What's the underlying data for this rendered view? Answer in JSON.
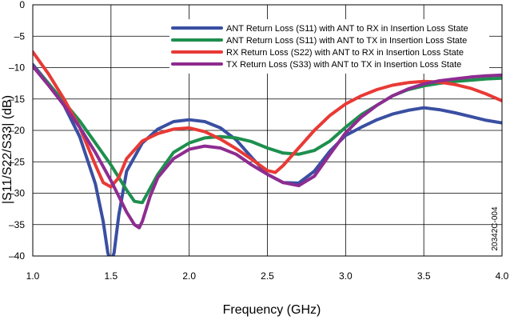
{
  "chart_data": {
    "type": "line",
    "xlabel": "Frequency (GHz)",
    "ylabel": "|S11/S22/S33| (dB)",
    "xlim": [
      1.0,
      4.0
    ],
    "ylim": [
      -40,
      0
    ],
    "x_ticks": [
      "1.0",
      "1.5",
      "2.0",
      "2.5",
      "3.0",
      "3.5",
      "4.0"
    ],
    "y_ticks": [
      "0",
      "–5",
      "–10",
      "–15",
      "–20",
      "–25",
      "–30",
      "–35",
      "–40"
    ],
    "grid": true,
    "legend_position": "top-right",
    "figure_id": "20342C-004",
    "series": [
      {
        "name": "ANT Return Loss (S11) with ANT to RX in Insertion Loss State",
        "color": "#3a4fa2",
        "x": [
          1.0,
          1.1,
          1.2,
          1.3,
          1.4,
          1.45,
          1.48,
          1.5,
          1.52,
          1.55,
          1.6,
          1.7,
          1.8,
          1.9,
          2.0,
          2.1,
          2.2,
          2.3,
          2.4,
          2.5,
          2.6,
          2.7,
          2.8,
          2.9,
          3.0,
          3.1,
          3.2,
          3.3,
          3.4,
          3.5,
          3.6,
          3.7,
          3.8,
          3.9,
          4.0
        ],
        "y": [
          -9.5,
          -12.5,
          -16.0,
          -21.0,
          -28.5,
          -34.5,
          -39.5,
          -41.0,
          -39.5,
          -33.5,
          -26.5,
          -22.0,
          -19.8,
          -18.6,
          -18.3,
          -18.6,
          -19.6,
          -21.5,
          -24.3,
          -27.0,
          -28.3,
          -28.4,
          -26.5,
          -23.3,
          -20.8,
          -19.5,
          -18.3,
          -17.4,
          -16.8,
          -16.4,
          -16.7,
          -17.2,
          -17.8,
          -18.4,
          -18.8
        ]
      },
      {
        "name": "ANT Return Loss (S11) with ANT to TX in Insertion Loss State",
        "color": "#1e8f4e",
        "x": [
          1.0,
          1.1,
          1.2,
          1.3,
          1.4,
          1.5,
          1.6,
          1.65,
          1.7,
          1.8,
          1.9,
          2.0,
          2.1,
          2.2,
          2.3,
          2.4,
          2.5,
          2.6,
          2.7,
          2.8,
          2.9,
          3.0,
          3.1,
          3.2,
          3.3,
          3.4,
          3.5,
          3.6,
          3.7,
          3.8,
          3.9,
          4.0
        ],
        "y": [
          -9.8,
          -12.5,
          -15.5,
          -18.5,
          -22.0,
          -25.5,
          -29.5,
          -31.3,
          -31.5,
          -27.0,
          -23.5,
          -22.0,
          -21.2,
          -21.0,
          -21.2,
          -21.8,
          -22.8,
          -23.6,
          -23.8,
          -23.2,
          -21.7,
          -19.5,
          -17.5,
          -16.0,
          -14.5,
          -13.5,
          -12.9,
          -12.5,
          -12.2,
          -12.0,
          -11.8,
          -11.7
        ]
      },
      {
        "name": "RX Return Loss (S22) with ANT to RX in Insertion Loss State",
        "color": "#e83a36",
        "x": [
          1.0,
          1.1,
          1.2,
          1.3,
          1.4,
          1.45,
          1.5,
          1.55,
          1.6,
          1.7,
          1.8,
          1.9,
          2.0,
          2.1,
          2.2,
          2.3,
          2.4,
          2.5,
          2.55,
          2.6,
          2.7,
          2.8,
          2.9,
          3.0,
          3.1,
          3.2,
          3.3,
          3.4,
          3.5,
          3.6,
          3.7,
          3.8,
          3.9,
          4.0
        ],
        "y": [
          -7.5,
          -11.0,
          -15.0,
          -19.5,
          -25.5,
          -28.3,
          -29.0,
          -27.5,
          -24.5,
          -21.7,
          -20.5,
          -19.8,
          -19.6,
          -20.2,
          -21.4,
          -22.9,
          -24.6,
          -26.4,
          -26.7,
          -25.6,
          -22.8,
          -20.0,
          -17.6,
          -15.8,
          -14.5,
          -13.5,
          -12.8,
          -12.4,
          -12.2,
          -12.3,
          -12.7,
          -13.3,
          -14.2,
          -15.3
        ]
      },
      {
        "name": "TX Return Loss (S33) with ANT to TX in Insertion Loss State",
        "color": "#8e2c91",
        "x": [
          1.0,
          1.1,
          1.2,
          1.3,
          1.4,
          1.5,
          1.55,
          1.6,
          1.65,
          1.68,
          1.7,
          1.75,
          1.8,
          1.9,
          2.0,
          2.1,
          2.2,
          2.3,
          2.4,
          2.5,
          2.6,
          2.7,
          2.8,
          2.9,
          3.0,
          3.1,
          3.2,
          3.3,
          3.4,
          3.5,
          3.6,
          3.7,
          3.8,
          3.9,
          4.0
        ],
        "y": [
          -9.8,
          -12.8,
          -16.0,
          -19.5,
          -23.5,
          -28.0,
          -30.5,
          -33.0,
          -35.0,
          -35.5,
          -34.5,
          -30.5,
          -27.5,
          -24.5,
          -23.0,
          -22.5,
          -22.8,
          -23.8,
          -25.5,
          -27.0,
          -28.3,
          -28.8,
          -27.3,
          -23.8,
          -20.4,
          -17.9,
          -16.0,
          -14.5,
          -13.4,
          -12.6,
          -12.1,
          -11.8,
          -11.5,
          -11.3,
          -11.2
        ]
      }
    ]
  }
}
